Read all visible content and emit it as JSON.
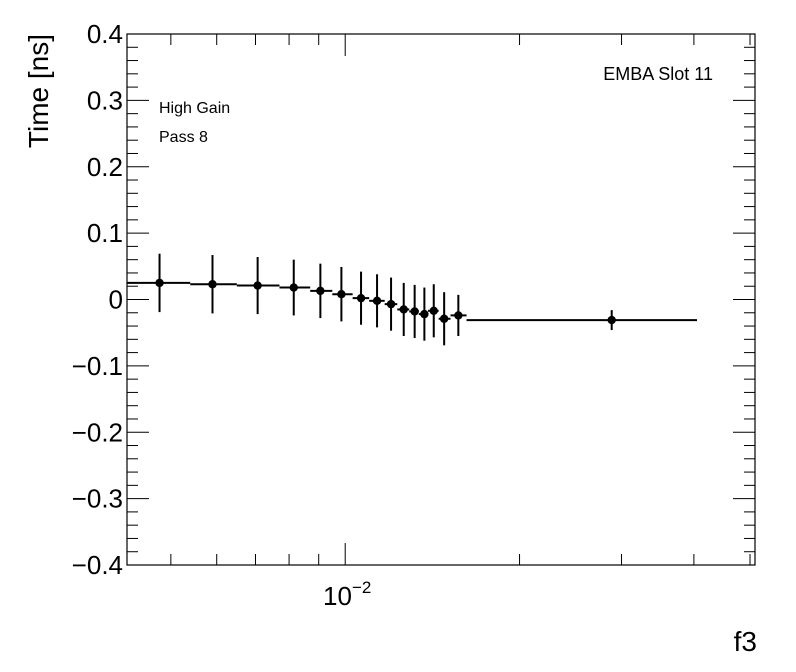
{
  "chart_data": {
    "type": "scatter",
    "xlabel": "f3",
    "ylabel": "Time [ns]",
    "xscale": "log",
    "xlim": [
      0.0042,
      0.051
    ],
    "ylim": [
      -0.4,
      0.4
    ],
    "yticks": [
      "−0.4",
      "−0.3",
      "−0.2",
      "−0.1",
      "0",
      "0.1",
      "0.2",
      "0.3",
      "0.4"
    ],
    "xtick_label": {
      "base": "10",
      "exp": "−2"
    },
    "annotations": {
      "top_right": "EMBA Slot 11",
      "line1": "High Gain",
      "line2": "Pass 8"
    },
    "grid": false,
    "series": [
      {
        "marker_color": "#000000",
        "points": [
          {
            "x": 0.00478,
            "y": 0.025,
            "err": 0.044,
            "xlo": 0.0042,
            "xhi": 0.0054
          },
          {
            "x": 0.0059,
            "y": 0.023,
            "err": 0.044,
            "xlo": 0.0054,
            "xhi": 0.0065
          },
          {
            "x": 0.00706,
            "y": 0.021,
            "err": 0.043,
            "xlo": 0.0065,
            "xhi": 0.0077
          },
          {
            "x": 0.00815,
            "y": 0.018,
            "err": 0.042,
            "xlo": 0.0077,
            "xhi": 0.0087
          },
          {
            "x": 0.00906,
            "y": 0.013,
            "err": 0.041,
            "xlo": 0.0087,
            "xhi": 0.0095
          },
          {
            "x": 0.00985,
            "y": 0.008,
            "err": 0.041,
            "xlo": 0.0095,
            "xhi": 0.0103
          },
          {
            "x": 0.01065,
            "y": 0.002,
            "err": 0.04,
            "xlo": 0.0103,
            "xhi": 0.011
          },
          {
            "x": 0.01135,
            "y": -0.002,
            "err": 0.04,
            "xlo": 0.011,
            "xhi": 0.0117
          },
          {
            "x": 0.012,
            "y": -0.007,
            "err": 0.04,
            "xlo": 0.0117,
            "xhi": 0.0123
          },
          {
            "x": 0.01262,
            "y": -0.015,
            "err": 0.04,
            "xlo": 0.0123,
            "xhi": 0.0129
          },
          {
            "x": 0.01318,
            "y": -0.018,
            "err": 0.04,
            "xlo": 0.0129,
            "xhi": 0.0134
          },
          {
            "x": 0.0137,
            "y": -0.022,
            "err": 0.04,
            "xlo": 0.0134,
            "xhi": 0.0139
          },
          {
            "x": 0.01422,
            "y": -0.017,
            "err": 0.04,
            "xlo": 0.0139,
            "xhi": 0.0145
          },
          {
            "x": 0.01482,
            "y": -0.029,
            "err": 0.04,
            "xlo": 0.0145,
            "xhi": 0.0152
          },
          {
            "x": 0.01568,
            "y": -0.024,
            "err": 0.031,
            "xlo": 0.0152,
            "xhi": 0.0162
          },
          {
            "x": 0.02885,
            "y": -0.031,
            "err": 0.015,
            "xlo": 0.0162,
            "xhi": 0.0405
          }
        ]
      }
    ]
  }
}
